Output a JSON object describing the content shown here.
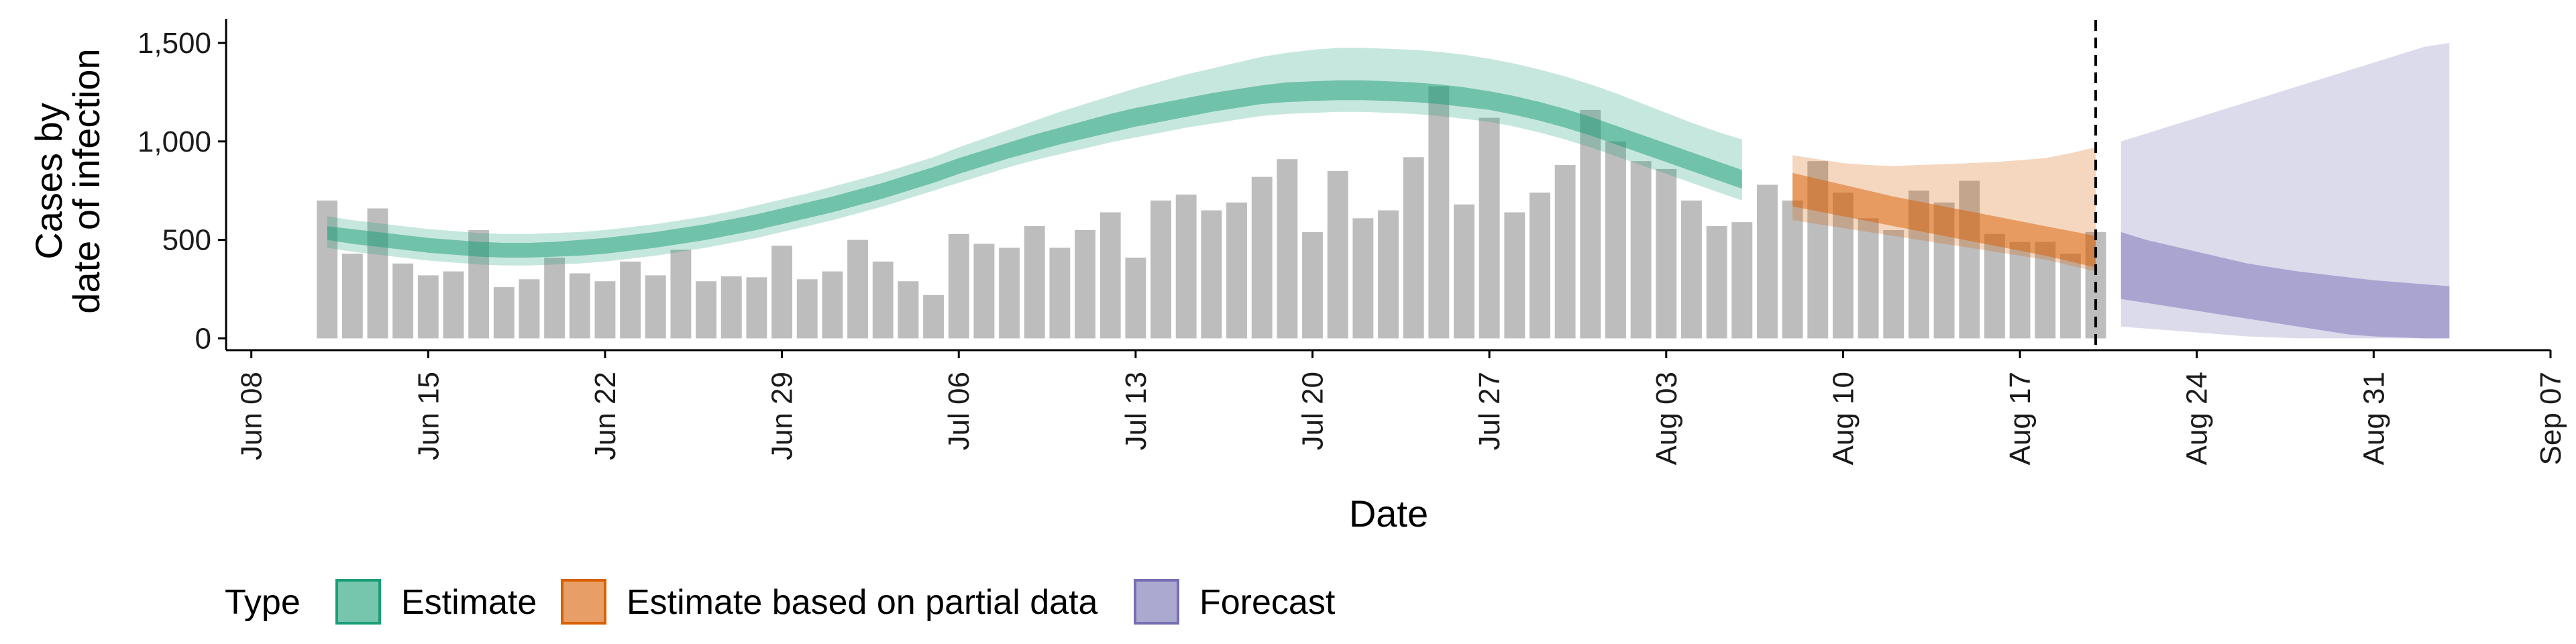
{
  "chart_data": {
    "type": "bar",
    "title": "",
    "xlabel": "Date",
    "ylabel_lines": [
      "Cases by",
      "date of infection"
    ],
    "x_range": [
      "2020-06-07",
      "2020-09-07"
    ],
    "ylim": [
      -60,
      1650
    ],
    "y_ticks": [
      0,
      500,
      1000,
      1500
    ],
    "y_tick_labels": [
      "0",
      "500",
      "1,000",
      "1,500"
    ],
    "x_ticks": [
      "2020-06-08",
      "2020-06-15",
      "2020-06-22",
      "2020-06-29",
      "2020-07-06",
      "2020-07-13",
      "2020-07-20",
      "2020-07-27",
      "2020-08-03",
      "2020-08-10",
      "2020-08-17",
      "2020-08-24",
      "2020-08-31",
      "2020-09-07"
    ],
    "x_tick_labels": [
      "Jun 08",
      "Jun 15",
      "Jun 22",
      "Jun 29",
      "Jul 06",
      "Jul 13",
      "Jul 20",
      "Jul 27",
      "Aug 03",
      "Aug 10",
      "Aug 17",
      "Aug 24",
      "Aug 31",
      "Sep 07"
    ],
    "grid": false,
    "vline_date": "2020-08-20",
    "bars": {
      "start_date": "2020-06-11",
      "values": [
        700,
        430,
        660,
        380,
        320,
        340,
        550,
        260,
        300,
        410,
        330,
        290,
        390,
        320,
        450,
        290,
        315,
        310,
        470,
        300,
        340,
        500,
        390,
        290,
        220,
        530,
        480,
        460,
        570,
        460,
        550,
        640,
        410,
        700,
        730,
        650,
        690,
        820,
        910,
        540,
        850,
        610,
        650,
        920,
        1280,
        680,
        1120,
        640,
        740,
        880,
        1160,
        1000,
        900,
        860,
        700,
        570,
        590,
        780,
        700,
        900,
        740,
        610,
        550,
        750,
        690,
        800,
        530,
        490,
        490,
        430,
        540
      ]
    },
    "series": [
      {
        "name": "Estimate",
        "color": "#1b9e77",
        "start_date": "2020-06-11",
        "outer_lower": [
          460,
          440,
          425,
          410,
          395,
          385,
          375,
          370,
          370,
          375,
          380,
          390,
          405,
          420,
          440,
          460,
          485,
          510,
          540,
          570,
          600,
          635,
          670,
          710,
          750,
          790,
          830,
          870,
          905,
          935,
          965,
          995,
          1020,
          1045,
          1070,
          1090,
          1110,
          1130,
          1140,
          1145,
          1150,
          1150,
          1145,
          1140,
          1130,
          1115,
          1100,
          1075,
          1045,
          1010,
          970,
          925,
          880,
          835,
          790,
          745,
          700
        ],
        "inner_lower": [
          500,
          480,
          465,
          450,
          435,
          425,
          415,
          410,
          410,
          415,
          420,
          430,
          445,
          460,
          480,
          500,
          525,
          550,
          580,
          610,
          640,
          675,
          710,
          750,
          790,
          835,
          875,
          915,
          950,
          985,
          1015,
          1045,
          1075,
          1100,
          1125,
          1150,
          1170,
          1190,
          1200,
          1205,
          1210,
          1210,
          1205,
          1200,
          1190,
          1175,
          1160,
          1135,
          1105,
          1070,
          1030,
          985,
          940,
          895,
          850,
          805,
          760
        ],
        "inner_upper": [
          570,
          555,
          540,
          525,
          510,
          500,
          490,
          485,
          485,
          490,
          500,
          510,
          525,
          540,
          560,
          580,
          605,
          630,
          660,
          690,
          720,
          755,
          790,
          830,
          870,
          915,
          955,
          995,
          1035,
          1070,
          1105,
          1140,
          1170,
          1195,
          1220,
          1245,
          1265,
          1285,
          1300,
          1305,
          1310,
          1310,
          1305,
          1300,
          1290,
          1275,
          1255,
          1230,
          1200,
          1165,
          1125,
          1080,
          1035,
          990,
          945,
          900,
          855
        ],
        "outer_upper": [
          620,
          600,
          585,
          570,
          555,
          545,
          535,
          530,
          530,
          535,
          540,
          550,
          565,
          580,
          600,
          620,
          645,
          675,
          705,
          735,
          770,
          805,
          840,
          880,
          920,
          970,
          1015,
          1060,
          1105,
          1150,
          1190,
          1230,
          1270,
          1305,
          1340,
          1370,
          1400,
          1430,
          1450,
          1465,
          1475,
          1475,
          1470,
          1465,
          1455,
          1440,
          1420,
          1395,
          1365,
          1330,
          1290,
          1245,
          1195,
          1145,
          1095,
          1050,
          1010
        ]
      },
      {
        "name": "Estimate based on partial data",
        "color": "#d95f02",
        "start_date": "2020-08-08",
        "outer_lower": [
          600,
          580,
          560,
          540,
          520,
          500,
          480,
          460,
          440,
          420,
          400,
          370,
          340
        ],
        "inner_lower": [
          670,
          645,
          620,
          595,
          570,
          545,
          520,
          495,
          470,
          445,
          420,
          390,
          360
        ],
        "inner_upper": [
          840,
          810,
          780,
          750,
          720,
          695,
          670,
          645,
          620,
          595,
          570,
          545,
          520
        ],
        "outer_upper": [
          930,
          910,
          890,
          880,
          875,
          880,
          885,
          890,
          895,
          905,
          915,
          940,
          970
        ]
      },
      {
        "name": "Forecast",
        "color": "#7570b3",
        "start_date": "2020-08-21",
        "outer_lower": [
          60,
          50,
          40,
          30,
          20,
          10,
          5,
          0,
          0,
          0,
          0,
          0,
          0,
          0
        ],
        "inner_lower": [
          200,
          180,
          160,
          140,
          120,
          100,
          80,
          60,
          40,
          20,
          10,
          5,
          0,
          0
        ],
        "inner_upper": [
          540,
          500,
          470,
          440,
          410,
          380,
          360,
          340,
          325,
          310,
          295,
          285,
          275,
          265
        ],
        "outer_upper": [
          1000,
          1040,
          1080,
          1120,
          1160,
          1200,
          1240,
          1280,
          1320,
          1360,
          1400,
          1440,
          1480,
          1500
        ]
      }
    ],
    "legend": {
      "title": "Type",
      "position": "bottom",
      "items": [
        "Estimate",
        "Estimate based on partial data",
        "Forecast"
      ]
    }
  }
}
